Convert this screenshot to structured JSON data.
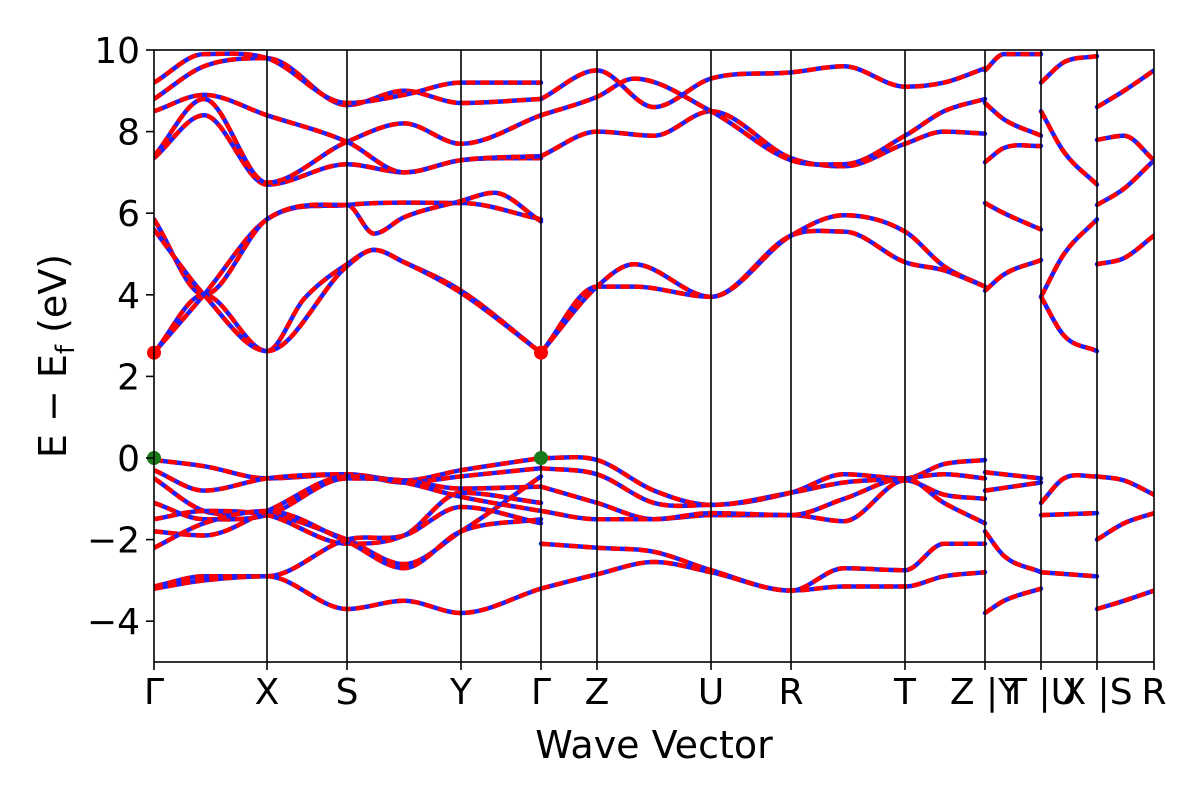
{
  "chart_data": {
    "type": "line",
    "title": "",
    "xlabel": "Wave Vector",
    "ylabel": "E − E",
    "ylabel_subscript": "f",
    "ylabel_unit": " (eV)",
    "ylim": [
      -5,
      10
    ],
    "yticks": [
      -4,
      -2,
      0,
      2,
      4,
      6,
      8,
      10
    ],
    "ytick_labels": [
      "−4",
      "−2",
      "0",
      "2",
      "4",
      "6",
      "8",
      "10"
    ],
    "xlim": [
      0,
      100
    ],
    "kpoints": [
      {
        "label": "Γ",
        "x": 0
      },
      {
        "label": "X",
        "x": 11.3
      },
      {
        "label": "S",
        "x": 19.3
      },
      {
        "label": "Y",
        "x": 30.7
      },
      {
        "label": "Γ",
        "x": 38.7
      },
      {
        "label": "Z",
        "x": 44.3
      },
      {
        "label": "U",
        "x": 55.7
      },
      {
        "label": "R",
        "x": 63.7
      },
      {
        "label": "T",
        "x": 75.1
      },
      {
        "label": "Z |Y",
        "x": 83.1
      },
      {
        "label": "T |U",
        "x": 88.7
      },
      {
        "label": "X |S",
        "x": 94.3
      },
      {
        "label": "R",
        "x": 100
      }
    ],
    "grid": false,
    "legend": "none",
    "colors": {
      "band": "#ff0000",
      "band_dash": "#1f1fff",
      "vbm": "#1a7a1a",
      "cbm": "#ff0000"
    },
    "extrema": [
      {
        "name": "cbm",
        "x": 0,
        "y": 2.58
      },
      {
        "name": "cbm",
        "x": 38.7,
        "y": 2.58
      },
      {
        "name": "vbm",
        "x": 0,
        "y": 0
      },
      {
        "name": "vbm",
        "x": 38.7,
        "y": 0
      }
    ],
    "bands": [
      {
        "x": [
          0,
          5,
          11.3,
          19.3,
          30.7,
          38.7
        ],
        "y": [
          2.58,
          4.0,
          5.85,
          6.2,
          6.25,
          5.85
        ]
      },
      {
        "x": [
          0,
          5,
          11.3,
          15,
          19.3,
          22,
          25,
          30.7,
          38.7
        ],
        "y": [
          2.58,
          4.0,
          2.62,
          3.9,
          4.75,
          5.1,
          4.8,
          4.1,
          2.58
        ]
      },
      {
        "x": [
          0,
          5,
          11.3,
          19.3,
          22,
          25,
          30.7,
          34,
          38.7
        ],
        "y": [
          5.85,
          4.0,
          5.85,
          6.2,
          5.5,
          5.9,
          6.3,
          6.5,
          5.8
        ]
      },
      {
        "x": [
          0,
          5,
          11.3,
          19.3,
          22,
          25,
          30.7,
          38.7
        ],
        "y": [
          5.6,
          4.0,
          2.62,
          4.7,
          5.1,
          4.8,
          4.05,
          2.58
        ]
      },
      {
        "x": [
          38.7,
          44.3,
          48,
          55.7,
          63.7,
          69,
          75.1,
          79,
          83.1
        ],
        "y": [
          2.58,
          4.2,
          4.75,
          3.95,
          5.45,
          5.95,
          5.55,
          4.7,
          4.2
        ]
      },
      {
        "x": [
          38.7,
          44.3,
          48,
          55.7,
          63.7,
          69,
          75.1,
          79,
          83.1
        ],
        "y": [
          2.58,
          4.2,
          4.2,
          3.95,
          5.45,
          5.55,
          4.8,
          4.6,
          4.2
        ]
      },
      {
        "x": [
          0,
          5,
          11.3,
          19.3,
          25,
          30.7,
          38.7
        ],
        "y": [
          7.35,
          8.4,
          6.7,
          7.2,
          7.0,
          7.3,
          7.35
        ]
      },
      {
        "x": [
          0,
          5,
          11.3,
          19.3,
          25,
          30.7,
          38.7
        ],
        "y": [
          7.4,
          8.8,
          6.75,
          7.75,
          8.2,
          7.7,
          8.4
        ]
      },
      {
        "x": [
          0,
          5,
          11.3,
          19.3,
          25,
          30.7,
          38.7
        ],
        "y": [
          8.5,
          8.9,
          8.4,
          7.75,
          7.0,
          7.3,
          7.4
        ]
      },
      {
        "x": [
          38.7,
          44.3,
          50,
          55.7,
          63.7,
          69,
          75.1,
          79,
          83.1
        ],
        "y": [
          7.4,
          8.0,
          7.9,
          8.5,
          7.35,
          7.15,
          7.7,
          8.0,
          7.95
        ]
      },
      {
        "x": [
          38.7,
          44.3,
          50,
          55.7,
          63.7,
          69,
          75.1,
          79,
          83.1
        ],
        "y": [
          8.8,
          9.5,
          8.6,
          9.3,
          9.45,
          9.6,
          9.1,
          9.2,
          9.55
        ]
      },
      {
        "x": [
          38.7,
          44.3,
          48,
          55.7,
          63.7,
          69,
          75.1,
          79,
          83.1
        ],
        "y": [
          8.4,
          8.85,
          9.3,
          8.5,
          7.3,
          7.2,
          7.9,
          8.5,
          8.8
        ]
      },
      {
        "x": [
          0,
          5,
          11.3,
          19.3,
          25,
          30.7,
          38.7
        ],
        "y": [
          8.8,
          9.6,
          9.8,
          8.65,
          9.0,
          8.7,
          8.8
        ]
      },
      {
        "x": [
          0,
          5,
          11.3,
          19.3,
          25,
          30.7,
          38.7
        ],
        "y": [
          9.2,
          9.9,
          9.8,
          8.7,
          8.9,
          9.2,
          9.2
        ]
      },
      {
        "x": [
          0,
          5,
          11.3,
          19.3,
          25,
          30.7,
          38.7
        ],
        "y": [
          -0.05,
          -0.2,
          -0.5,
          -0.4,
          -0.55,
          -0.3,
          0.0
        ]
      },
      {
        "x": [
          0,
          5,
          11.3,
          19.3,
          25,
          30.7,
          38.7
        ],
        "y": [
          -0.3,
          -0.8,
          -0.5,
          -0.4,
          -0.6,
          -0.45,
          -0.25
        ]
      },
      {
        "x": [
          0,
          5,
          11.3,
          19.3,
          25,
          30.7,
          38.7
        ],
        "y": [
          -0.5,
          -1.3,
          -1.35,
          -2.0,
          -2.6,
          -1.8,
          -0.45
        ]
      },
      {
        "x": [
          0,
          5,
          11.3,
          19.3,
          25,
          30.7,
          38.7
        ],
        "y": [
          -1.1,
          -1.5,
          -1.4,
          -0.5,
          -0.55,
          -0.75,
          -0.7
        ]
      },
      {
        "x": [
          0,
          5,
          11.3,
          19.3,
          25,
          30.7,
          38.7
        ],
        "y": [
          -1.5,
          -1.3,
          -1.4,
          -2.1,
          -1.9,
          -0.85,
          -1.1
        ]
      },
      {
        "x": [
          0,
          5,
          11.3,
          19.3,
          25,
          30.7,
          38.7
        ],
        "y": [
          -1.8,
          -1.9,
          -1.3,
          -0.45,
          -0.6,
          -0.95,
          -1.3
        ]
      },
      {
        "x": [
          0,
          5,
          11.3,
          19.3,
          25,
          30.7,
          38.7
        ],
        "y": [
          -2.2,
          -1.6,
          -1.3,
          -2.05,
          -2.7,
          -1.8,
          -1.5
        ]
      },
      {
        "x": [
          0,
          5,
          11.3,
          19.3,
          25,
          30.7,
          38.7
        ],
        "y": [
          -3.15,
          -2.9,
          -2.9,
          -2.0,
          -1.9,
          -1.2,
          -1.6
        ]
      },
      {
        "x": [
          0,
          5,
          11.3,
          19.3,
          25,
          30.7,
          38.7
        ],
        "y": [
          -3.2,
          -3.0,
          -2.9,
          -3.7,
          -3.5,
          -3.8,
          -3.2
        ]
      },
      {
        "x": [
          38.7,
          44.3,
          50,
          55.7,
          63.7,
          69,
          75.1,
          79,
          83.1
        ],
        "y": [
          0.0,
          -0.05,
          -0.8,
          -1.15,
          -0.85,
          -0.4,
          -0.5,
          -0.15,
          -0.05
        ]
      },
      {
        "x": [
          38.7,
          44.3,
          50,
          55.7,
          63.7,
          69,
          75.1,
          79,
          83.1
        ],
        "y": [
          -0.25,
          -0.4,
          -1.1,
          -1.15,
          -0.85,
          -0.6,
          -0.5,
          -0.4,
          -0.5
        ]
      },
      {
        "x": [
          38.7,
          44.3,
          50,
          55.7,
          63.7,
          69,
          75.1,
          79,
          83.1
        ],
        "y": [
          -0.7,
          -1.1,
          -1.5,
          -1.4,
          -1.4,
          -1.55,
          -0.55,
          -0.9,
          -1.0
        ]
      },
      {
        "x": [
          38.7,
          44.3,
          50,
          55.7,
          63.7,
          69,
          75.1,
          79,
          83.1
        ],
        "y": [
          -1.3,
          -1.5,
          -1.5,
          -1.35,
          -1.4,
          -1.0,
          -0.5,
          -1.1,
          -1.6
        ]
      },
      {
        "x": [
          38.7,
          44.3,
          50,
          55.7,
          63.7,
          69,
          75.1,
          79,
          83.1
        ],
        "y": [
          -2.1,
          -2.2,
          -2.3,
          -2.75,
          -3.25,
          -2.7,
          -2.75,
          -2.1,
          -2.1
        ]
      },
      {
        "x": [
          38.7,
          44.3,
          50,
          55.7,
          63.7,
          69,
          75.1,
          79,
          83.1
        ],
        "y": [
          -3.2,
          -2.85,
          -2.55,
          -2.8,
          -3.25,
          -3.15,
          -3.15,
          -2.9,
          -2.8
        ]
      },
      {
        "x": [
          83.1,
          85,
          88.7
        ],
        "y": [
          4.1,
          4.5,
          4.85
        ]
      },
      {
        "x": [
          83.1,
          85,
          88.7
        ],
        "y": [
          6.25,
          6.0,
          5.6
        ]
      },
      {
        "x": [
          83.1,
          85,
          88.7
        ],
        "y": [
          7.25,
          7.6,
          7.65
        ]
      },
      {
        "x": [
          83.1,
          85,
          88.7
        ],
        "y": [
          8.7,
          8.3,
          7.9
        ]
      },
      {
        "x": [
          83.1,
          85,
          88.7
        ],
        "y": [
          9.5,
          9.9,
          9.9
        ]
      },
      {
        "x": [
          83.1,
          88.7
        ],
        "y": [
          -0.35,
          -0.5
        ]
      },
      {
        "x": [
          83.1,
          88.7
        ],
        "y": [
          -0.8,
          -0.6
        ]
      },
      {
        "x": [
          83.1,
          85,
          88.7
        ],
        "y": [
          -1.8,
          -2.4,
          -2.8
        ]
      },
      {
        "x": [
          83.1,
          85,
          88.7
        ],
        "y": [
          -3.8,
          -3.5,
          -3.2
        ]
      },
      {
        "x": [
          88.7,
          91,
          94.3
        ],
        "y": [
          3.95,
          5.0,
          5.85
        ]
      },
      {
        "x": [
          88.7,
          91,
          94.3
        ],
        "y": [
          3.95,
          3.0,
          2.62
        ]
      },
      {
        "x": [
          88.7,
          91,
          94.3
        ],
        "y": [
          8.5,
          7.5,
          6.7
        ]
      },
      {
        "x": [
          88.7,
          91,
          94.3
        ],
        "y": [
          9.2,
          9.7,
          9.85
        ]
      },
      {
        "x": [
          88.7,
          91,
          94.3
        ],
        "y": [
          -1.1,
          -0.5,
          -0.45
        ]
      },
      {
        "x": [
          88.7,
          94.3
        ],
        "y": [
          -1.4,
          -1.35
        ]
      },
      {
        "x": [
          88.7,
          94.3
        ],
        "y": [
          -2.8,
          -2.9
        ]
      },
      {
        "x": [
          94.3,
          97,
          100
        ],
        "y": [
          4.75,
          4.9,
          5.45
        ]
      },
      {
        "x": [
          94.3,
          97,
          100
        ],
        "y": [
          6.2,
          6.6,
          7.3
        ]
      },
      {
        "x": [
          94.3,
          97,
          100
        ],
        "y": [
          7.8,
          7.9,
          7.3
        ]
      },
      {
        "x": [
          94.3,
          97,
          100
        ],
        "y": [
          8.6,
          9.0,
          9.5
        ]
      },
      {
        "x": [
          94.3,
          97,
          100
        ],
        "y": [
          -0.45,
          -0.55,
          -0.9
        ]
      },
      {
        "x": [
          94.3,
          97,
          100
        ],
        "y": [
          -2.0,
          -1.6,
          -1.35
        ]
      },
      {
        "x": [
          94.3,
          97,
          100
        ],
        "y": [
          -3.7,
          -3.5,
          -3.25
        ]
      }
    ]
  }
}
